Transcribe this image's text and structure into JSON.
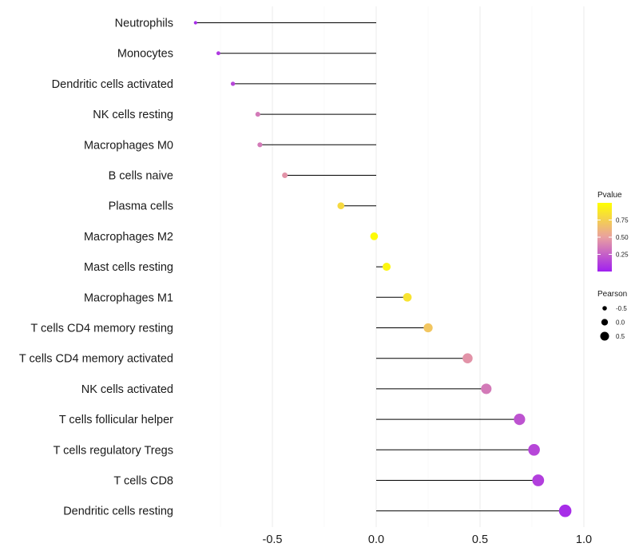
{
  "chart_data": {
    "type": "lollipop",
    "categories": [
      "Neutrophils",
      "Monocytes",
      "Dendritic cells activated",
      "NK cells resting",
      "Macrophages M0",
      "B cells naive",
      "Plasma cells",
      "Macrophages M2",
      "Mast cells resting",
      "Macrophages M1",
      "T cells CD4 memory resting",
      "T cells CD4 memory activated",
      "NK cells activated",
      "T cells follicular helper",
      "T cells regulatory  Tregs ",
      "T cells CD8",
      "Dendritic cells resting"
    ],
    "pearson": [
      -0.87,
      -0.76,
      -0.69,
      -0.57,
      -0.56,
      -0.44,
      -0.17,
      -0.01,
      0.05,
      0.15,
      0.25,
      0.44,
      0.53,
      0.69,
      0.76,
      0.78,
      0.91
    ],
    "pvalue": [
      0.05,
      0.1,
      0.15,
      0.35,
      0.35,
      0.45,
      0.8,
      0.98,
      0.95,
      0.85,
      0.7,
      0.45,
      0.35,
      0.2,
      0.15,
      0.12,
      0.05
    ],
    "xlim": [
      -1.0,
      1.05
    ],
    "xticks": [
      -0.5,
      0.0,
      0.5,
      1.0
    ],
    "xtick_labels": [
      "-0.5",
      "0.0",
      "0.5",
      "1.0"
    ],
    "grid": true,
    "legend_pvalue": {
      "title": "Pvalue",
      "ticks": [
        0.75,
        0.5,
        0.25
      ],
      "tick_labels": [
        "0.75",
        "0.50",
        "0.25"
      ],
      "low_color": "#a020f0",
      "mid_color": "#e9a0a0",
      "high_color": "#ffff00"
    },
    "legend_pearson": {
      "title": "Pearson",
      "values": [
        -0.5,
        0.0,
        0.5
      ],
      "labels": [
        "-0.5",
        "0.0",
        "0.5"
      ]
    }
  }
}
